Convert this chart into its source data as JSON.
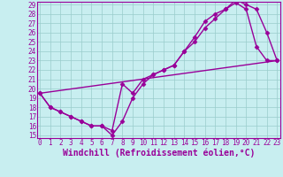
{
  "xlabel": "Windchill (Refroidissement éolien,°C)",
  "bg_color": "#c8eef0",
  "line_color": "#990099",
  "grid_color": "#99cccc",
  "xlim": [
    0,
    23
  ],
  "ylim": [
    15,
    29
  ],
  "xticks": [
    0,
    1,
    2,
    3,
    4,
    5,
    6,
    7,
    8,
    9,
    10,
    11,
    12,
    13,
    14,
    15,
    16,
    17,
    18,
    19,
    20,
    21,
    22,
    23
  ],
  "yticks": [
    15,
    16,
    17,
    18,
    19,
    20,
    21,
    22,
    23,
    24,
    25,
    26,
    27,
    28,
    29
  ],
  "line1_x": [
    0,
    1,
    2,
    3,
    4,
    5,
    6,
    7,
    8,
    9,
    10,
    11,
    12,
    13,
    14,
    15,
    16,
    17,
    18,
    19,
    20,
    21,
    22,
    23
  ],
  "line1_y": [
    19.5,
    18.0,
    17.5,
    17.0,
    16.5,
    16.0,
    16.0,
    15.0,
    16.5,
    19.0,
    20.5,
    21.5,
    22.0,
    22.5,
    24.0,
    25.0,
    26.5,
    27.5,
    28.5,
    29.2,
    28.5,
    24.5,
    23.0,
    23.0
  ],
  "line2_x": [
    0,
    1,
    2,
    3,
    4,
    5,
    6,
    7,
    8,
    9,
    10,
    11,
    12,
    13,
    14,
    15,
    16,
    17,
    18,
    19,
    20,
    21,
    22,
    23
  ],
  "line2_y": [
    19.5,
    18.0,
    17.5,
    17.0,
    16.5,
    16.0,
    16.0,
    15.5,
    20.5,
    19.5,
    21.0,
    21.5,
    22.0,
    22.5,
    24.0,
    25.5,
    27.2,
    28.0,
    28.5,
    29.5,
    29.0,
    28.5,
    26.0,
    23.0
  ],
  "line3_x": [
    0,
    23
  ],
  "line3_y": [
    19.5,
    23.0
  ],
  "marker": "D",
  "markersize": 2.5,
  "linewidth": 1.0,
  "tick_fontsize": 5.5,
  "xlabel_fontsize": 7.0
}
